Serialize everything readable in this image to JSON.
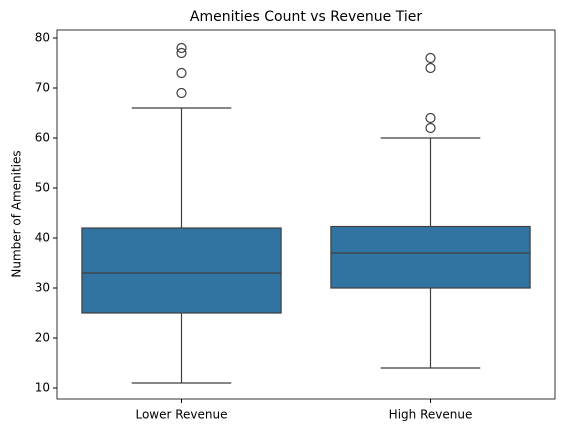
{
  "chart_data": {
    "type": "box",
    "title": "Amenities Count vs Revenue Tier",
    "ylabel": "Number of Amenities",
    "categories": [
      "Lower Revenue",
      "High Revenue"
    ],
    "color": "#3274a1",
    "boxes": [
      {
        "low": 11,
        "q1": 25,
        "median": 33,
        "q3": 42,
        "high": 66,
        "outliers": [
          69,
          73,
          77,
          78
        ]
      },
      {
        "low": 14,
        "q1": 30,
        "median": 37,
        "q3": 42.3,
        "high": 60,
        "outliers": [
          62,
          64,
          74,
          76
        ]
      }
    ],
    "ylim": [
      7.8,
      81.6
    ],
    "yticks": [
      10,
      20,
      30,
      40,
      50,
      60,
      70,
      80
    ]
  }
}
